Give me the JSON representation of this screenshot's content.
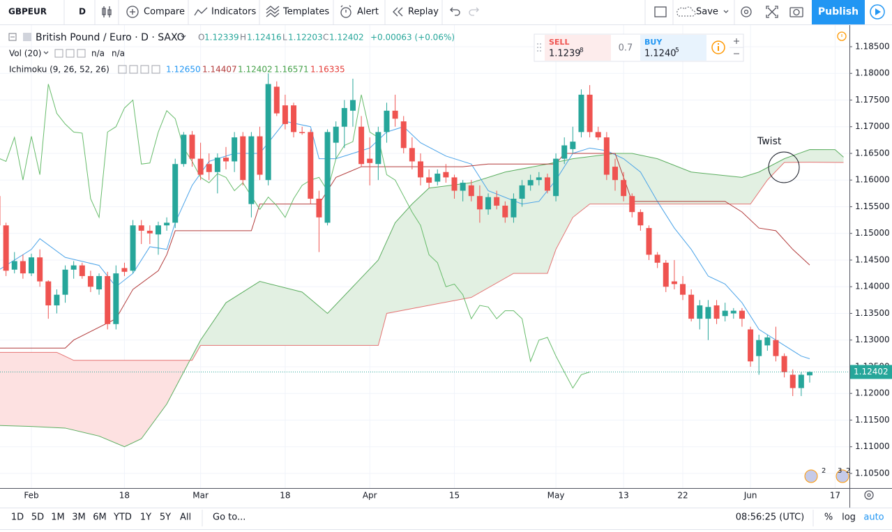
{
  "toolbar": {
    "symbol": "GBPEUR",
    "interval": "D",
    "compare": "Compare",
    "indicators": "Indicators",
    "templates": "Templates",
    "alert": "Alert",
    "replay": "Replay",
    "save": "Save",
    "publish": "Publish"
  },
  "legend": {
    "instrument": "British Pound / Euro · D · SAXO",
    "o_label": "O",
    "o": "1.12339",
    "h_label": "H",
    "h": "1.12416",
    "l_label": "L",
    "l": "1.12203",
    "c_label": "C",
    "c": "1.12402",
    "change": "+0.00063 (+0.06%)",
    "vol": "Vol (20)",
    "vol_values": [
      "n/a",
      "n/a"
    ],
    "ichimoku": "Ichimoku (9, 26, 52, 26)",
    "ichimoku_values": [
      "1.12650",
      "1.14407",
      "1.12402",
      "1.16571",
      "1.16335"
    ]
  },
  "trade": {
    "sell": "SELL",
    "sell_price": "1.1239",
    "sell_pip": "8",
    "spread": "0.7",
    "buy": "BUY",
    "buy_price": "1.1240",
    "buy_pip": "5"
  },
  "chart_data": {
    "type": "candlestick",
    "categories": [
      null,
      null,
      null,
      null,
      "Feb",
      null,
      null,
      null,
      null,
      null,
      null,
      null,
      null,
      null,
      null,
      "18",
      null,
      null,
      null,
      null,
      null,
      null,
      null,
      null,
      "Mar",
      null,
      null,
      null,
      null,
      null,
      null,
      null,
      null,
      null,
      "18",
      null,
      null,
      null,
      null,
      null,
      null,
      null,
      null,
      null,
      "Apr",
      null,
      null,
      null,
      null,
      null,
      null,
      null,
      null,
      null,
      "15",
      null,
      null,
      null,
      null,
      null,
      null,
      null,
      null,
      null,
      null,
      null,
      "May",
      null,
      null,
      null,
      null,
      null,
      null,
      null,
      "13",
      null,
      null,
      null,
      null,
      null,
      null,
      "22",
      null,
      null,
      null,
      null,
      null,
      null,
      null,
      "Jun",
      null,
      null,
      null,
      null,
      null,
      null,
      null,
      null,
      null,
      "17"
    ],
    "candles": [
      [
        1.157,
        1.157,
        1.15,
        1.1515
      ],
      [
        1.1515,
        1.152,
        1.142,
        1.143
      ],
      [
        1.1432,
        1.1465,
        1.1425,
        1.1448
      ],
      [
        1.1448,
        1.146,
        1.1415,
        1.1425
      ],
      [
        1.1425,
        1.1462,
        1.142,
        1.1455
      ],
      [
        1.1455,
        1.147,
        1.14,
        1.141
      ],
      [
        1.141,
        1.1412,
        1.134,
        1.1365
      ],
      [
        1.1365,
        1.1395,
        1.135,
        1.1385
      ],
      [
        1.1385,
        1.144,
        1.137,
        1.1432
      ],
      [
        1.1432,
        1.1448,
        1.1415,
        1.144
      ],
      [
        1.144,
        1.1445,
        1.1415,
        1.142
      ],
      [
        1.142,
        1.143,
        1.139,
        1.14
      ],
      [
        1.1395,
        1.1425,
        1.1385,
        1.142
      ],
      [
        1.142,
        1.1428,
        1.132,
        1.133
      ],
      [
        1.133,
        1.144,
        1.132,
        1.1425
      ],
      [
        1.1435,
        1.1445,
        1.142,
        1.1428
      ],
      [
        1.143,
        1.1525,
        1.1425,
        1.1515
      ],
      [
        1.1515,
        1.1525,
        1.148,
        1.1505
      ],
      [
        1.1505,
        1.1515,
        1.148,
        1.15
      ],
      [
        1.1498,
        1.1522,
        1.146,
        1.1515
      ],
      [
        1.1515,
        1.153,
        1.1505,
        1.152
      ],
      [
        1.152,
        1.164,
        1.151,
        1.163
      ],
      [
        1.163,
        1.169,
        1.1625,
        1.1685
      ],
      [
        1.1685,
        1.1692,
        1.1625,
        1.164
      ],
      [
        1.164,
        1.167,
        1.16,
        1.161
      ],
      [
        1.163,
        1.165,
        1.16,
        1.1615
      ],
      [
        1.1615,
        1.165,
        1.1575,
        1.1642
      ],
      [
        1.1642,
        1.1662,
        1.162,
        1.1635
      ],
      [
        1.1635,
        1.169,
        1.1615,
        1.168
      ],
      [
        1.1682,
        1.169,
        1.159,
        1.16
      ],
      [
        1.1555,
        1.169,
        1.153,
        1.1682
      ],
      [
        1.1682,
        1.17,
        1.16,
        1.161
      ],
      [
        1.16,
        1.18,
        1.159,
        1.178
      ],
      [
        1.1775,
        1.1785,
        1.172,
        1.1725
      ],
      [
        1.174,
        1.176,
        1.1695,
        1.1705
      ],
      [
        1.174,
        1.1745,
        1.168,
        1.169
      ],
      [
        1.169,
        1.17,
        1.1685,
        1.1688
      ],
      [
        1.169,
        1.1695,
        1.1555,
        1.1565
      ],
      [
        1.1565,
        1.158,
        1.1465,
        1.153
      ],
      [
        1.152,
        1.1695,
        1.1515,
        1.169
      ],
      [
        1.167,
        1.171,
        1.164,
        1.17
      ],
      [
        1.17,
        1.175,
        1.166,
        1.1735
      ],
      [
        1.173,
        1.179,
        1.17,
        1.175
      ],
      [
        1.17,
        1.172,
        1.1625,
        1.163
      ],
      [
        1.164,
        1.168,
        1.159,
        1.1632
      ],
      [
        1.163,
        1.17,
        1.16,
        1.169
      ],
      [
        1.169,
        1.1745,
        1.167,
        1.173
      ],
      [
        1.173,
        1.176,
        1.17,
        1.1715
      ],
      [
        1.171,
        1.172,
        1.165,
        1.166
      ],
      [
        1.166,
        1.168,
        1.162,
        1.1635
      ],
      [
        1.1635,
        1.165,
        1.159,
        1.1605
      ],
      [
        1.1605,
        1.162,
        1.1585,
        1.1595
      ],
      [
        1.1597,
        1.162,
        1.159,
        1.1612
      ],
      [
        1.1615,
        1.163,
        1.1595,
        1.1605
      ],
      [
        1.1605,
        1.161,
        1.1565,
        1.158
      ],
      [
        1.158,
        1.16,
        1.156,
        1.1595
      ],
      [
        1.159,
        1.16,
        1.156,
        1.157
      ],
      [
        1.157,
        1.159,
        1.152,
        1.1545
      ],
      [
        1.1545,
        1.1575,
        1.1535,
        1.1568
      ],
      [
        1.1568,
        1.158,
        1.1545,
        1.1552
      ],
      [
        1.1552,
        1.156,
        1.152,
        1.153
      ],
      [
        1.153,
        1.1575,
        1.152,
        1.1565
      ],
      [
        1.1565,
        1.16,
        1.155,
        1.159
      ],
      [
        1.159,
        1.161,
        1.158,
        1.16
      ],
      [
        1.16,
        1.1615,
        1.159,
        1.1605
      ],
      [
        1.1605,
        1.1612,
        1.1575,
        1.158
      ],
      [
        1.157,
        1.165,
        1.156,
        1.164
      ],
      [
        1.164,
        1.168,
        1.163,
        1.1665
      ],
      [
        1.1658,
        1.17,
        1.165,
        1.1672
      ],
      [
        1.169,
        1.177,
        1.168,
        1.176
      ],
      [
        1.176,
        1.1778,
        1.168,
        1.169
      ],
      [
        1.169,
        1.17,
        1.1675,
        1.168
      ],
      [
        1.168,
        1.169,
        1.16,
        1.161
      ],
      [
        1.1625,
        1.164,
        1.158,
        1.16
      ],
      [
        1.16,
        1.1615,
        1.156,
        1.157
      ],
      [
        1.157,
        1.1575,
        1.153,
        1.154
      ],
      [
        1.154,
        1.1545,
        1.1505,
        1.1515
      ],
      [
        1.151,
        1.1515,
        1.145,
        1.146
      ],
      [
        1.146,
        1.1465,
        1.1435,
        1.1445
      ],
      [
        1.1445,
        1.145,
        1.139,
        1.14
      ],
      [
        1.141,
        1.145,
        1.1395,
        1.1405
      ],
      [
        1.1405,
        1.142,
        1.1375,
        1.1385
      ],
      [
        1.1385,
        1.1395,
        1.1335,
        1.134
      ],
      [
        1.134,
        1.1375,
        1.132,
        1.1365
      ],
      [
        1.134,
        1.1375,
        1.13,
        1.1362
      ],
      [
        1.1365,
        1.1375,
        1.133,
        1.134
      ],
      [
        1.1345,
        1.137,
        1.1335,
        1.1355
      ],
      [
        1.135,
        1.136,
        1.134,
        1.1355
      ],
      [
        1.1355,
        1.136,
        1.1325,
        1.134
      ],
      [
        1.132,
        1.1325,
        1.125,
        1.126
      ],
      [
        1.127,
        1.131,
        1.1235,
        1.13
      ],
      [
        1.129,
        1.131,
        1.128,
        1.1305
      ],
      [
        1.13,
        1.1325,
        1.126,
        1.127
      ],
      [
        1.127,
        1.1275,
        1.123,
        1.124
      ],
      [
        1.1235,
        1.1245,
        1.1195,
        1.121
      ],
      [
        1.121,
        1.124,
        1.1195,
        1.1235
      ],
      [
        1.12339,
        1.12416,
        1.12203,
        1.12402
      ],
      null,
      null,
      null
    ],
    "up_color": "#26a69a",
    "down_color": "#ef5350",
    "lines": [
      {
        "color": "#4aa3e8",
        "x": [
          0,
          4,
          5,
          8,
          12,
          14,
          16,
          18,
          20,
          21,
          23,
          25,
          28,
          31,
          34,
          37,
          38,
          40,
          42,
          44,
          46,
          48,
          50,
          53,
          56,
          58,
          62,
          64,
          66,
          68,
          70,
          72,
          74,
          76,
          78,
          80,
          82,
          84,
          86,
          88,
          90,
          92,
          95,
          96
        ],
        "values": [
          1.143,
          1.147,
          1.149,
          1.1455,
          1.144,
          1.14,
          1.1425,
          1.1475,
          1.147,
          1.152,
          1.159,
          1.1635,
          1.165,
          1.165,
          1.171,
          1.17,
          1.164,
          1.164,
          1.165,
          1.166,
          1.169,
          1.17,
          1.167,
          1.1645,
          1.163,
          1.158,
          1.1555,
          1.156,
          1.16,
          1.165,
          1.166,
          1.1655,
          1.164,
          1.1615,
          1.156,
          1.151,
          1.147,
          1.142,
          1.1405,
          1.137,
          1.132,
          1.13,
          1.127,
          1.1265
        ]
      },
      {
        "color": "#b23a3a",
        "x": [
          0,
          8,
          9,
          14,
          16,
          19,
          20,
          21,
          30,
          31,
          38,
          40,
          43,
          55,
          58,
          66,
          67,
          73,
          75,
          86,
          88,
          90,
          92,
          94,
          96
        ],
        "values": [
          1.1285,
          1.1285,
          1.13,
          1.134,
          1.1395,
          1.143,
          1.146,
          1.1505,
          1.1505,
          1.1555,
          1.1555,
          1.1605,
          1.1625,
          1.1625,
          1.163,
          1.163,
          1.165,
          1.165,
          1.156,
          1.156,
          1.154,
          1.151,
          1.1505,
          1.147,
          1.14407
        ]
      },
      {
        "color": "#66bb6a",
        "x": [
          0,
          1,
          2,
          3,
          4,
          5,
          6,
          7,
          8,
          9,
          10,
          11,
          12,
          13,
          14,
          15,
          16,
          17,
          18,
          19,
          20,
          21,
          22,
          23,
          24,
          25,
          26,
          27,
          28,
          29,
          30,
          31,
          32,
          33,
          34,
          35,
          36,
          37,
          38,
          39,
          40,
          41,
          42,
          43,
          44,
          45,
          46,
          47,
          48,
          49,
          50,
          51,
          52,
          53,
          54,
          55,
          56,
          57,
          58,
          59,
          60,
          61,
          62,
          63,
          64,
          65,
          66,
          67,
          68,
          69,
          70
        ],
        "values": [
          1.1642,
          1.1635,
          1.168,
          1.16,
          1.1682,
          1.161,
          1.178,
          1.1725,
          1.1705,
          1.169,
          1.1688,
          1.1565,
          1.153,
          1.169,
          1.17,
          1.1735,
          1.175,
          1.163,
          1.1632,
          1.169,
          1.173,
          1.1715,
          1.166,
          1.1635,
          1.1605,
          1.1595,
          1.1612,
          1.1605,
          1.158,
          1.1595,
          1.157,
          1.1545,
          1.1568,
          1.1552,
          1.153,
          1.1565,
          1.159,
          1.16,
          1.1605,
          1.158,
          1.164,
          1.1665,
          1.1672,
          1.176,
          1.169,
          1.168,
          1.161,
          1.16,
          1.157,
          1.154,
          1.1515,
          1.146,
          1.1445,
          1.14,
          1.1405,
          1.1385,
          1.134,
          1.1365,
          1.1362,
          1.134,
          1.1355,
          1.1355,
          1.134,
          1.126,
          1.13,
          1.1305,
          1.127,
          1.124,
          1.121,
          1.1235,
          1.12402
        ]
      }
    ],
    "cloud": {
      "span_a": {
        "color": "#5aad5e",
        "x": [
          0,
          4,
          8,
          12,
          15,
          17,
          20,
          24,
          27,
          31,
          36,
          39,
          42,
          45,
          47,
          49,
          51,
          56,
          60,
          65,
          68,
          73,
          75,
          78,
          82,
          88,
          90,
          93,
          96,
          99,
          100
        ],
        "values": [
          1.114,
          1.1138,
          1.1135,
          1.112,
          1.11,
          1.1115,
          1.118,
          1.13,
          1.137,
          1.141,
          1.139,
          1.135,
          1.14,
          1.145,
          1.152,
          1.1555,
          1.1585,
          1.1595,
          1.1615,
          1.163,
          1.164,
          1.165,
          1.165,
          1.164,
          1.1615,
          1.1605,
          1.1615,
          1.164,
          1.16571,
          1.1657,
          1.1643
        ]
      },
      "span_b": {
        "color": "#e57373",
        "x": [
          0,
          7,
          9,
          23,
          24,
          45,
          46,
          56,
          61,
          65,
          66,
          68,
          70,
          89,
          91,
          93,
          96,
          100
        ],
        "values": [
          1.1277,
          1.1277,
          1.1262,
          1.1262,
          1.129,
          1.129,
          1.135,
          1.138,
          1.1425,
          1.1425,
          1.147,
          1.153,
          1.1555,
          1.1555,
          1.16,
          1.1633,
          1.16335,
          1.1633
        ]
      },
      "bull_fill": "#e2f0e2",
      "bear_fill": "#fde1e1"
    },
    "last_price": 1.12402,
    "annotation": "Twist",
    "events": [
      "2",
      "3",
      "2"
    ],
    "ylim": [
      1.10225,
      1.18905
    ],
    "yticks": [
      {
        "value": 1.105,
        "label": "1.10500"
      },
      {
        "value": 1.11,
        "label": "1.11000"
      },
      {
        "value": 1.115,
        "label": "1.11500"
      },
      {
        "value": 1.12,
        "label": "1.12000"
      },
      {
        "value": 1.125,
        "label": "1.12500"
      },
      {
        "value": 1.13,
        "label": "1.13000"
      },
      {
        "value": 1.135,
        "label": "1.13500"
      },
      {
        "value": 1.14,
        "label": "1.14000"
      },
      {
        "value": 1.145,
        "label": "1.14500"
      },
      {
        "value": 1.15,
        "label": "1.15000"
      },
      {
        "value": 1.155,
        "label": "1.15500"
      },
      {
        "value": 1.16,
        "label": "1.16000"
      },
      {
        "value": 1.165,
        "label": "1.16500"
      },
      {
        "value": 1.17,
        "label": "1.17000"
      },
      {
        "value": 1.175,
        "label": "1.17500"
      },
      {
        "value": 1.18,
        "label": "1.18000"
      },
      {
        "value": 1.185,
        "label": "1.18500"
      }
    ],
    "grid": true
  },
  "bottom": {
    "ranges": [
      "1D",
      "5D",
      "1M",
      "3M",
      "6M",
      "YTD",
      "1Y",
      "5Y",
      "All"
    ],
    "goto": "Go to...",
    "time": "08:56:25 (UTC)",
    "percent": "%",
    "log": "log",
    "auto": "auto"
  }
}
